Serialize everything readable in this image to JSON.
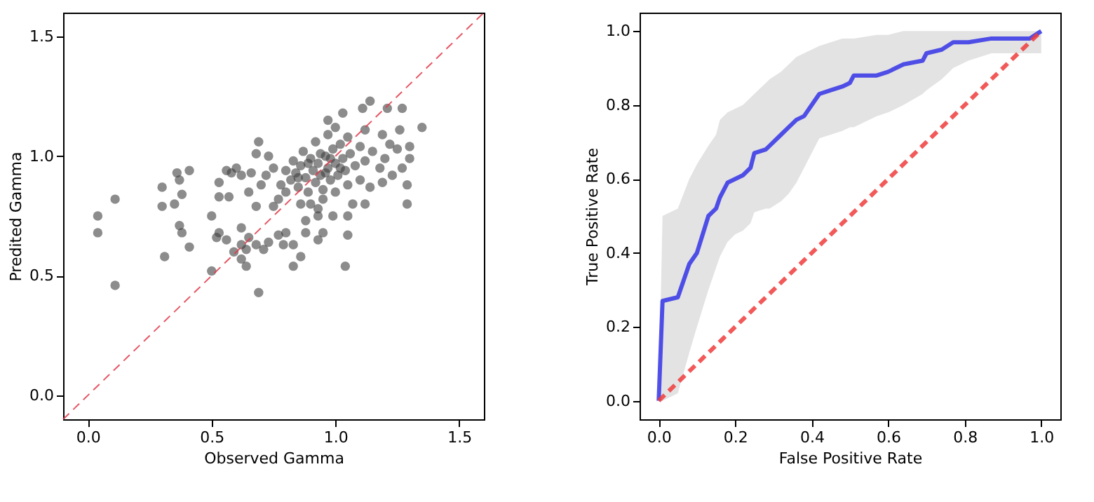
{
  "chart_data": [
    {
      "type": "scatter",
      "xlabel": "Observed Gamma",
      "ylabel": "Predited Gamma",
      "xlim": [
        -0.1,
        1.6
      ],
      "ylim": [
        -0.1,
        1.6
      ],
      "xticks": [
        {
          "value": 0,
          "label": "0.0"
        },
        {
          "value": 0.5,
          "label": "0.5"
        },
        {
          "value": 1,
          "label": "1.0"
        },
        {
          "value": 1.5,
          "label": "1.5"
        }
      ],
      "yticks": [
        {
          "value": 0,
          "label": "0.0"
        },
        {
          "value": 0.5,
          "label": "0.5"
        },
        {
          "value": 1,
          "label": "1.0"
        },
        {
          "value": 1.5,
          "label": "1.5"
        }
      ],
      "grid": false,
      "marker": "circle",
      "series": [
        {
          "type": "scatter",
          "color": "#404040",
          "x": [
            0.04,
            0.04,
            0.11,
            0.11,
            0.3,
            0.3,
            0.31,
            0.36,
            0.37,
            0.35,
            0.37,
            0.38,
            0.41,
            0.41,
            0.38,
            0.5,
            0.5,
            0.53,
            0.53,
            0.53,
            0.52,
            0.57,
            0.56,
            0.6,
            0.56,
            0.59,
            0.62,
            0.62,
            0.64,
            0.64,
            0.65,
            0.62,
            0.65,
            0.68,
            0.68,
            0.69,
            0.69,
            0.68,
            0.71,
            0.73,
            0.75,
            0.77,
            0.79,
            0.8,
            0.83,
            0.83,
            0.86,
            0.88,
            0.88,
            0.93,
            0.95,
            0.93,
            0.99,
            1.05,
            1.04,
            1.05,
            1.07,
            1.12,
            1.19,
            1.23,
            1.29,
            1.29,
            1.3,
            1.3,
            1.35,
            1.27,
            1.21,
            1.14,
            1.11,
            1.03,
            0.97,
            1.26,
            1.25,
            1.27,
            1.19,
            1.12,
            0.72,
            0.75,
            0.78,
            0.8,
            0.82,
            0.84,
            0.85,
            0.86,
            0.88,
            0.89,
            0.9,
            0.91,
            0.92,
            0.93,
            0.94,
            0.95,
            0.96,
            0.97,
            0.98,
            0.99,
            1.0,
            1.01,
            1.02,
            1.03,
            1.04,
            1.05,
            1.06,
            1.08,
            1.1,
            1.12,
            1.15,
            1.18,
            0.83,
            0.87,
            0.9,
            0.95,
            1.0,
            1.05,
            0.8,
            0.77,
            0.7,
            0.66,
            0.62,
            0.58,
            0.73,
            0.92,
            0.97,
            1.0,
            0.86,
            0.93,
            1.1,
            1.14,
            1.2,
            1.22,
            0.98,
            0.94,
            0.89,
            0.96,
            1.02,
            0.85
          ],
          "values": [
            0.75,
            0.68,
            0.82,
            0.46,
            0.87,
            0.79,
            0.58,
            0.93,
            0.9,
            0.8,
            0.71,
            0.68,
            0.94,
            0.62,
            0.84,
            0.75,
            0.52,
            0.89,
            0.83,
            0.68,
            0.66,
            0.83,
            0.94,
            0.95,
            0.65,
            0.6,
            0.63,
            0.57,
            0.54,
            0.61,
            0.66,
            0.7,
            0.85,
            0.79,
            1.01,
            0.43,
            1.06,
            0.63,
            0.61,
            0.64,
            0.79,
            0.67,
            0.63,
            0.68,
            0.63,
            0.54,
            0.58,
            0.68,
            0.73,
            0.65,
            0.68,
            0.75,
            0.75,
            0.75,
            0.54,
            0.67,
            0.8,
            0.8,
            0.89,
            0.92,
            0.88,
            0.8,
            0.99,
            1.04,
            1.12,
            1.2,
            1.2,
            1.23,
            1.2,
            1.18,
            1.15,
            1.11,
            1.03,
            0.95,
            1.09,
            1.11,
            0.92,
            0.95,
            0.88,
            0.85,
            0.9,
            0.93,
            0.87,
            0.96,
            0.91,
            0.85,
            0.99,
            0.94,
            0.89,
            0.97,
            0.92,
            0.86,
            1.0,
            0.95,
            0.9,
            1.03,
            0.97,
            0.92,
            1.05,
            0.99,
            0.94,
            1.08,
            1.01,
            0.96,
            1.04,
            0.98,
            1.02,
            0.95,
            0.98,
            1.02,
            0.8,
            0.82,
            0.85,
            0.88,
            0.94,
            0.82,
            0.88,
            0.93,
            0.92,
            0.93,
            1.0,
            1.06,
            1.09,
            1.12,
            0.8,
            0.78,
            0.9,
            0.87,
            0.99,
            1.05,
            0.99,
            1.01,
            0.97,
            0.93,
            0.95,
            0.91
          ]
        },
        {
          "type": "line",
          "color": "#e03a4a",
          "line_style": "dashed",
          "marker": "none",
          "x": [
            -0.1,
            1.6
          ],
          "values": [
            -0.1,
            1.6
          ]
        }
      ]
    },
    {
      "type": "line",
      "xlabel": "False Positive Rate",
      "ylabel": "True Positive Rate",
      "xlim": [
        -0.05,
        1.05
      ],
      "ylim": [
        -0.05,
        1.05
      ],
      "xticks": [
        {
          "value": 0,
          "label": "0.0"
        },
        {
          "value": 0.2,
          "label": "0.2"
        },
        {
          "value": 0.4,
          "label": "0.4"
        },
        {
          "value": 0.6,
          "label": "0.6"
        },
        {
          "value": 0.8,
          "label": "0.8"
        },
        {
          "value": 1,
          "label": "1.0"
        }
      ],
      "yticks": [
        {
          "value": 0,
          "label": "0.0"
        },
        {
          "value": 0.2,
          "label": "0.2"
        },
        {
          "value": 0.4,
          "label": "0.4"
        },
        {
          "value": 0.6,
          "label": "0.6"
        },
        {
          "value": 0.8,
          "label": "0.8"
        },
        {
          "value": 1,
          "label": "1.0"
        }
      ],
      "grid": false,
      "marker": "none",
      "series": [
        {
          "type": "line",
          "color": "#3434e8",
          "line_style": "solid",
          "x": [
            0,
            0.01,
            0.05,
            0.08,
            0.1,
            0.13,
            0.15,
            0.16,
            0.18,
            0.2,
            0.22,
            0.24,
            0.25,
            0.28,
            0.29,
            0.32,
            0.34,
            0.36,
            0.38,
            0.4,
            0.42,
            0.45,
            0.48,
            0.5,
            0.51,
            0.57,
            0.6,
            0.64,
            0.69,
            0.7,
            0.74,
            0.77,
            0.81,
            0.87,
            0.97,
            1.0
          ],
          "values": [
            0,
            0.27,
            0.28,
            0.37,
            0.4,
            0.5,
            0.52,
            0.55,
            0.59,
            0.6,
            0.61,
            0.63,
            0.67,
            0.68,
            0.69,
            0.72,
            0.74,
            0.76,
            0.77,
            0.8,
            0.83,
            0.84,
            0.85,
            0.86,
            0.88,
            0.88,
            0.89,
            0.91,
            0.92,
            0.94,
            0.95,
            0.97,
            0.97,
            0.98,
            0.98,
            1.0
          ],
          "lower": [
            0,
            0,
            0.02,
            0.13,
            0.2,
            0.3,
            0.36,
            0.39,
            0.43,
            0.45,
            0.46,
            0.48,
            0.51,
            0.52,
            0.52,
            0.54,
            0.56,
            0.59,
            0.63,
            0.67,
            0.71,
            0.72,
            0.73,
            0.74,
            0.74,
            0.77,
            0.78,
            0.8,
            0.83,
            0.84,
            0.87,
            0.9,
            0.92,
            0.94,
            0.94,
            0.94
          ],
          "upper": [
            0,
            0.5,
            0.52,
            0.6,
            0.64,
            0.69,
            0.72,
            0.76,
            0.78,
            0.79,
            0.8,
            0.82,
            0.83,
            0.86,
            0.87,
            0.89,
            0.91,
            0.93,
            0.94,
            0.95,
            0.96,
            0.97,
            0.98,
            0.98,
            0.98,
            0.99,
            0.99,
            1.0,
            1.0,
            1.0,
            1.0,
            1.0,
            1.0,
            1.0,
            1.0,
            1.0
          ]
        },
        {
          "type": "line",
          "color": "#f03c3c",
          "line_style": "dashed",
          "x": [
            0,
            1
          ],
          "values": [
            0,
            1
          ]
        }
      ]
    }
  ]
}
